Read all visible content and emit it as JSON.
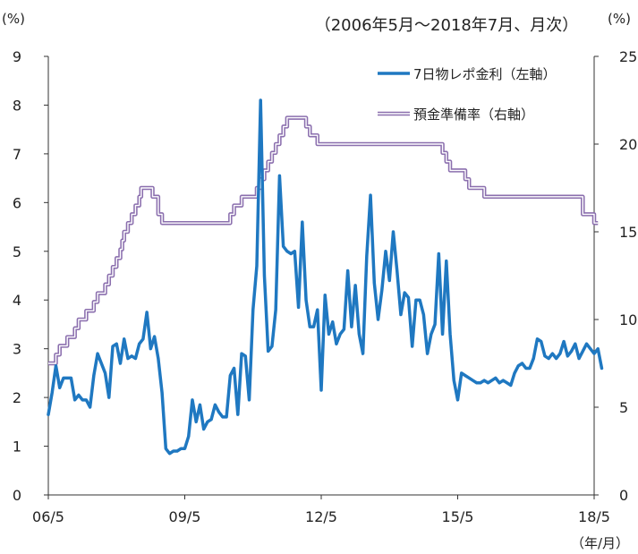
{
  "chart_data": {
    "type": "line",
    "title": "（2006年5月～2018年7月、月次）",
    "left_unit": "(%)",
    "right_unit": "(%)",
    "x_unit": "（年/月）",
    "x_tick_labels": [
      "06/5",
      "09/5",
      "12/5",
      "15/5",
      "18/5"
    ],
    "x_tick_positions": [
      0,
      36,
      72,
      108,
      144
    ],
    "y_left": {
      "ylim": [
        0,
        9
      ],
      "ticks": [
        0,
        1,
        2,
        3,
        4,
        5,
        6,
        7,
        8,
        9
      ]
    },
    "y_right": {
      "ylim": [
        0,
        25
      ],
      "ticks": [
        0,
        5,
        10,
        15,
        20,
        25
      ]
    },
    "grid": false,
    "legend_position": "top-right",
    "series": [
      {
        "name": "7日物レポ金利（左軸）",
        "axis": "left",
        "color": "#1f78c1",
        "values": [
          1.65,
          2.1,
          2.65,
          2.2,
          2.4,
          2.4,
          2.4,
          1.95,
          2.05,
          1.95,
          1.95,
          1.8,
          2.45,
          2.9,
          2.7,
          2.5,
          2.0,
          3.05,
          3.1,
          2.7,
          3.2,
          2.8,
          2.85,
          2.8,
          3.1,
          3.2,
          3.75,
          3.0,
          3.25,
          2.8,
          2.1,
          0.95,
          0.85,
          0.9,
          0.9,
          0.95,
          0.95,
          1.2,
          1.95,
          1.5,
          1.85,
          1.35,
          1.5,
          1.55,
          1.85,
          1.7,
          1.6,
          1.6,
          2.45,
          2.6,
          1.65,
          2.9,
          2.85,
          1.95,
          3.8,
          4.7,
          8.1,
          4.5,
          2.95,
          3.05,
          3.8,
          6.55,
          5.1,
          5.0,
          4.95,
          5.0,
          3.85,
          5.6,
          4.0,
          3.45,
          3.45,
          3.8,
          2.15,
          4.1,
          3.3,
          3.55,
          3.1,
          3.3,
          3.4,
          4.6,
          3.45,
          4.3,
          3.3,
          2.9,
          4.9,
          6.15,
          4.35,
          3.6,
          4.2,
          5.0,
          4.4,
          5.4,
          4.6,
          3.7,
          4.15,
          4.05,
          3.05,
          4.0,
          4.0,
          3.7,
          2.9,
          3.3,
          3.5,
          4.95,
          3.3,
          4.8,
          3.3,
          2.35,
          1.95,
          2.5,
          2.45,
          2.4,
          2.35,
          2.3,
          2.3,
          2.35,
          2.3,
          2.35,
          2.4,
          2.3,
          2.35,
          2.3,
          2.25,
          2.5,
          2.65,
          2.7,
          2.6,
          2.6,
          2.8,
          3.2,
          3.15,
          2.85,
          2.8,
          2.9,
          2.8,
          2.9,
          3.15,
          2.85,
          2.95,
          3.1,
          2.8,
          2.95,
          3.1,
          3.0,
          2.9,
          3.0,
          2.6
        ]
      },
      {
        "name": "預金準備率（右軸）",
        "axis": "right",
        "color": "#8b6fae",
        "steps": [
          [
            0,
            7.5
          ],
          [
            2,
            8.0
          ],
          [
            3,
            8.5
          ],
          [
            5,
            9.0
          ],
          [
            7,
            9.5
          ],
          [
            8,
            10.0
          ],
          [
            10,
            10.5
          ],
          [
            12,
            11.0
          ],
          [
            13,
            11.5
          ],
          [
            15,
            12.0
          ],
          [
            16,
            12.5
          ],
          [
            17,
            13.0
          ],
          [
            18,
            13.5
          ],
          [
            19,
            14.0
          ],
          [
            19.5,
            14.5
          ],
          [
            20,
            15.0
          ],
          [
            21,
            15.5
          ],
          [
            22,
            16.0
          ],
          [
            23,
            16.5
          ],
          [
            24,
            17.0
          ],
          [
            24.5,
            17.5
          ],
          [
            27.5,
            17.0
          ],
          [
            29,
            16.0
          ],
          [
            30,
            15.5
          ],
          [
            48,
            16.0
          ],
          [
            49,
            16.5
          ],
          [
            51,
            17.0
          ],
          [
            55,
            17.5
          ],
          [
            56,
            18.0
          ],
          [
            57,
            18.5
          ],
          [
            58,
            19.0
          ],
          [
            59,
            19.5
          ],
          [
            60,
            20.0
          ],
          [
            61,
            20.5
          ],
          [
            62,
            21.0
          ],
          [
            63,
            21.5
          ],
          [
            68,
            21.0
          ],
          [
            69,
            20.5
          ],
          [
            71,
            20.0
          ],
          [
            104,
            19.5
          ],
          [
            105,
            19.0
          ],
          [
            106,
            18.5
          ],
          [
            110,
            18.0
          ],
          [
            111,
            17.5
          ],
          [
            115,
            17.0
          ],
          [
            141,
            16.0
          ],
          [
            144,
            15.5
          ]
        ],
        "x_end": 145
      }
    ]
  }
}
